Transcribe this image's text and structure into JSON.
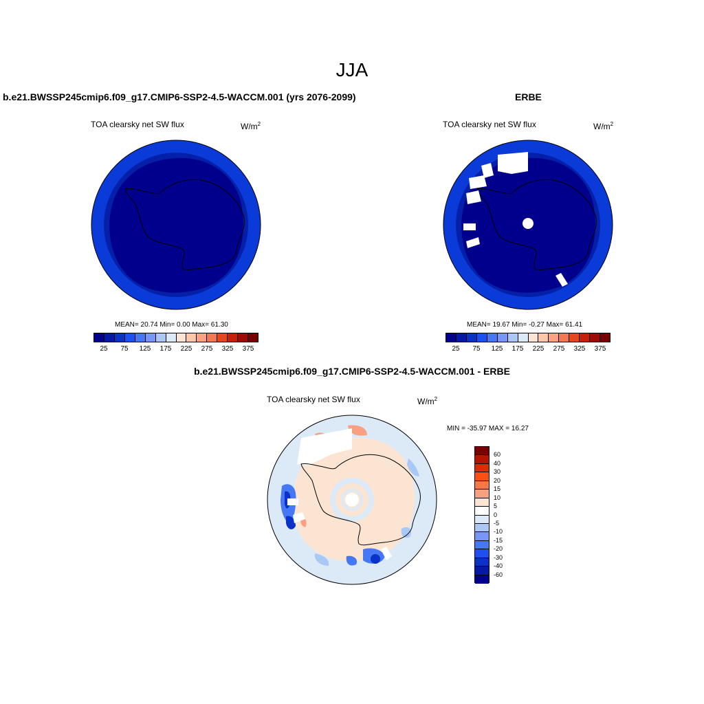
{
  "figure": {
    "season": "JJA",
    "panels": [
      {
        "id": "model",
        "title": "b.e21.BWSSP245cmip6.f09_g17.CMIP6-SSP2-4.5-WACCM.001 (yrs 2076-2099)",
        "variable": "TOA clearsky net SW flux",
        "units": "W/m",
        "units_exp": "2",
        "stats_text": "MEAN=  20.74  Min=   0.00  Max=  61.30",
        "mean": 20.74,
        "min": 0.0,
        "max": 61.3
      },
      {
        "id": "obs",
        "title": "ERBE",
        "variable": "TOA clearsky net SW flux",
        "units": "W/m",
        "units_exp": "2",
        "stats_text": "MEAN=  19.67  Min=  -0.27  Max=  61.41",
        "mean": 19.67,
        "min": -0.27,
        "max": 61.41
      },
      {
        "id": "diff",
        "title": "b.e21.BWSSP245cmip6.f09_g17.CMIP6-SSP2-4.5-WACCM.001 - ERBE",
        "variable": "TOA clearsky net SW flux",
        "units": "W/m",
        "units_exp": "2",
        "stats_text": "MIN = -35.97 MAX =  16.27",
        "min": -35.97,
        "max": 16.27
      }
    ],
    "colorbar_abs": {
      "colors": [
        "#00008c",
        "#0519a6",
        "#0a32c8",
        "#1e50f0",
        "#4678f5",
        "#7896f5",
        "#aac8f5",
        "#dceaf8",
        "#fce4d4",
        "#fcc8aa",
        "#fca282",
        "#f57850",
        "#e6461e",
        "#c81e0a",
        "#a00a05",
        "#780000"
      ],
      "tick_labels": [
        "25",
        "75",
        "125",
        "175",
        "225",
        "275",
        "325",
        "375"
      ]
    },
    "colorbar_diff": {
      "colors": [
        "#7a0000",
        "#b41400",
        "#dc2d00",
        "#fa5014",
        "#fa7846",
        "#faa082",
        "#fce4d2",
        "#ffffff",
        "#dceaf8",
        "#aac8f5",
        "#7896f5",
        "#4678f5",
        "#1e50f0",
        "#0a32c8",
        "#0519a6",
        "#00008c"
      ],
      "tick_labels": [
        "60",
        "40",
        "30",
        "20",
        "15",
        "10",
        "5",
        "0",
        "-5",
        "-10",
        "-15",
        "-20",
        "-30",
        "-40",
        "-60"
      ]
    },
    "map_colors": {
      "deep": "#00008c",
      "mid": "#0520a8",
      "outer": "#0a3ad8",
      "diff_bg": "#dceaf8",
      "diff_pos": "#fce4d2",
      "diff_pos2": "#faa082",
      "diff_neg": "#4678f5",
      "diff_neg2": "#0a32c8",
      "missing": "#ffffff"
    }
  }
}
